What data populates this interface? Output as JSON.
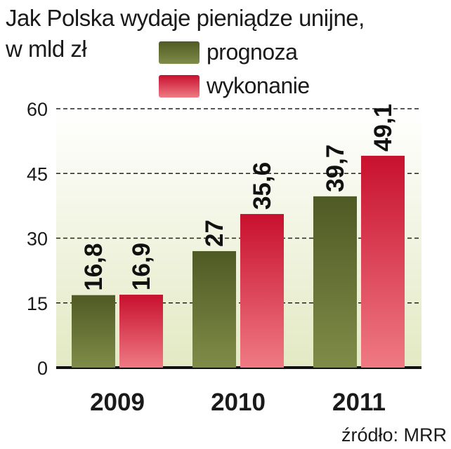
{
  "title_line1": "Jak Polska wydaje pieniądze unijne,",
  "title_line2": "w mld zł",
  "source": "źródło: MRR",
  "colors": {
    "prognoza_dark": "#4f5a24",
    "prognoza_light": "#7f8c48",
    "wykonanie_dark": "#c8102e",
    "wykonanie_light": "#ef7a84",
    "background_top": "#ffffff",
    "background_bottom": "#e3e9c3"
  },
  "chart_data": {
    "type": "bar",
    "title": "Jak Polska wydaje pieniądze unijne, w mld zł",
    "categories": [
      "2009",
      "2010",
      "2011"
    ],
    "series": [
      {
        "name": "prognoza",
        "values": [
          16.8,
          27,
          39.7
        ],
        "labels": [
          "16,8",
          "27",
          "39,7"
        ]
      },
      {
        "name": "wykonanie",
        "values": [
          16.9,
          35.6,
          49.1
        ],
        "labels": [
          "16,9",
          "35,6",
          "49,1"
        ]
      }
    ],
    "yticks": [
      "0",
      "15",
      "30",
      "45",
      "60"
    ],
    "ylim": [
      0,
      60
    ],
    "grid": "dashed horizontal",
    "legend": "top-right"
  }
}
